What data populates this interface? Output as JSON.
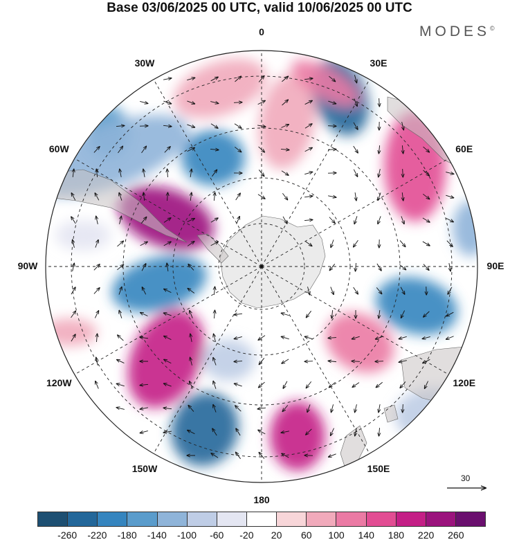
{
  "title": "Base 03/06/2025 00 UTC, valid 10/06/2025 00 UTC",
  "brand": "MODES",
  "brand_mark": "©",
  "map": {
    "projection": "south-polar-stereographic",
    "longitude_labels": [
      "0",
      "30E",
      "60E",
      "90E",
      "120E",
      "150E",
      "180",
      "150W",
      "120W",
      "90W",
      "60W",
      "30W"
    ],
    "reference_vector": {
      "label": "30"
    }
  },
  "colorbar": {
    "colors": [
      "#1d4f72",
      "#23679a",
      "#3585bf",
      "#5a9ccc",
      "#8fb4d9",
      "#bfcde6",
      "#e4e6f2",
      "#ffffff",
      "#f8d6d9",
      "#f1aabb",
      "#eb7aa4",
      "#e24d93",
      "#c41f86",
      "#9b137d",
      "#6a0f6e"
    ],
    "tick_labels": [
      "-260",
      "-220",
      "-180",
      "-140",
      "-100",
      "-60",
      "-20",
      "20",
      "60",
      "100",
      "140",
      "180",
      "220",
      "260"
    ]
  }
}
